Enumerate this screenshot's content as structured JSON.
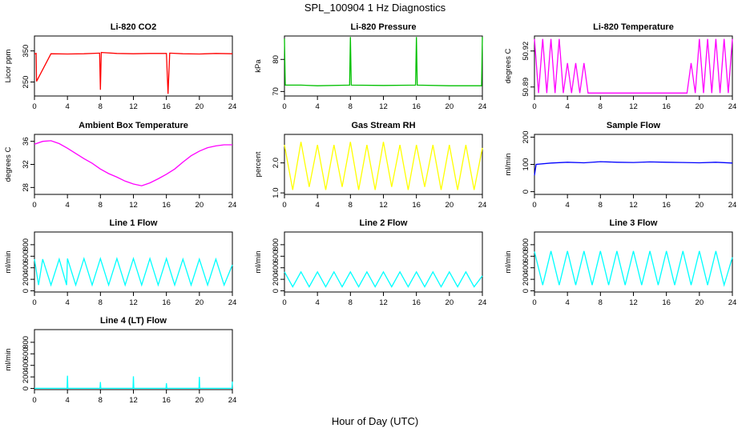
{
  "title": "SPL_100904  1 Hz Diagnostics",
  "xlabel": "Hour of Day (UTC)",
  "chart_data": [
    {
      "type": "line",
      "title": "Li-820 CO2",
      "ylabel": "Licor ppm",
      "color": "#ff0000",
      "xticks": [
        "0",
        "4",
        "8",
        "12",
        "16",
        "20",
        "24"
      ],
      "xlim": [
        0,
        24
      ],
      "yticks": [
        "250",
        "350"
      ],
      "yticks_values": [
        250,
        350
      ],
      "ylim": [
        205,
        398
      ],
      "series": [
        {
          "x": [
            0,
            0.2,
            0.25,
            2,
            4,
            6,
            7.9,
            8,
            8.1,
            10,
            12,
            14,
            16,
            16.2,
            16.4,
            18,
            20,
            22,
            24
          ],
          "y": [
            340,
            342,
            252,
            341,
            340,
            341,
            343,
            225,
            345,
            342,
            341,
            342,
            342,
            212,
            343,
            341,
            340,
            342,
            341
          ]
        }
      ]
    },
    {
      "type": "line",
      "title": "Li-820 Pressure",
      "ylabel": "kPa",
      "color": "#00c000",
      "xticks": [
        "0",
        "4",
        "8",
        "12",
        "16",
        "20",
        "24"
      ],
      "xlim": [
        0,
        24
      ],
      "yticks": [
        "70",
        "80"
      ],
      "yticks_values": [
        70,
        80
      ],
      "ylim": [
        68.6,
        87.3
      ],
      "series": [
        {
          "x": [
            0,
            0.1,
            0.15,
            2,
            4,
            7.9,
            8,
            8.1,
            12,
            15.9,
            16,
            16.1,
            20,
            23.9,
            24
          ],
          "y": [
            86.5,
            72,
            72,
            72,
            71.8,
            72,
            87,
            72,
            71.9,
            72,
            87,
            72,
            71.8,
            71.8,
            87
          ]
        }
      ]
    },
    {
      "type": "line",
      "title": "Li-820 Temperature",
      "ylabel": "degrees C",
      "color": "#ff00ff",
      "xticks": [
        "0",
        "4",
        "8",
        "12",
        "16",
        "20",
        "24"
      ],
      "xlim": [
        0,
        24
      ],
      "yticks": [
        "50.89",
        "50.92"
      ],
      "yticks_values": [
        50.89,
        50.92
      ],
      "ylim": [
        50.8825,
        50.9325
      ],
      "series": [
        {
          "x": [
            0,
            0.5,
            1,
            1.5,
            2,
            2.5,
            3,
            3.5,
            4,
            4.5,
            5,
            5.5,
            6,
            6.5,
            7,
            7.5,
            8,
            8.5,
            9,
            9.5,
            10,
            10.5,
            11,
            11.5,
            12,
            12.5,
            13,
            13.5,
            14,
            14.5,
            15,
            15.5,
            16,
            16.5,
            17,
            17.5,
            18,
            18.5,
            19,
            19.5,
            20,
            20.5,
            21,
            21.5,
            22,
            22.5,
            23,
            23.5,
            24
          ],
          "y": [
            50.93,
            50.885,
            50.93,
            50.885,
            50.93,
            50.885,
            50.93,
            50.885,
            50.91,
            50.885,
            50.91,
            50.885,
            50.91,
            50.885,
            50.885,
            50.885,
            50.885,
            50.885,
            50.885,
            50.885,
            50.885,
            50.885,
            50.885,
            50.885,
            50.885,
            50.885,
            50.885,
            50.885,
            50.885,
            50.885,
            50.885,
            50.885,
            50.885,
            50.885,
            50.885,
            50.885,
            50.885,
            50.885,
            50.91,
            50.885,
            50.93,
            50.885,
            50.93,
            50.885,
            50.93,
            50.885,
            50.93,
            50.885,
            50.93
          ]
        }
      ]
    },
    {
      "type": "line",
      "title": "Ambient Box Temperature",
      "ylabel": "degrees C",
      "color": "#ff00ff",
      "xticks": [
        "0",
        "4",
        "8",
        "12",
        "16",
        "20",
        "24"
      ],
      "xlim": [
        0,
        24
      ],
      "yticks": [
        "28",
        "32",
        "36"
      ],
      "yticks_values": [
        28,
        32,
        36
      ],
      "ylim": [
        26.8,
        37.2
      ],
      "series": [
        {
          "x": [
            0,
            1,
            2,
            3,
            4,
            5,
            6,
            7,
            8,
            9,
            10,
            11,
            12,
            13,
            14,
            15,
            16,
            17,
            18,
            19,
            20,
            21,
            22,
            23,
            24
          ],
          "y": [
            35.5,
            36,
            36.1,
            35.6,
            34.8,
            33.9,
            33,
            32.2,
            31.2,
            30.4,
            29.8,
            29.1,
            28.6,
            28.3,
            28.8,
            29.5,
            30.3,
            31.2,
            32.4,
            33.5,
            34.3,
            34.9,
            35.2,
            35.4,
            35.4
          ]
        }
      ]
    },
    {
      "type": "line",
      "title": "Gas Stream RH",
      "ylabel": "percent",
      "color": "#ffff00",
      "xticks": [
        "0",
        "4",
        "8",
        "12",
        "16",
        "20",
        "24"
      ],
      "xlim": [
        0,
        24
      ],
      "yticks": [
        "1.0",
        "2.0"
      ],
      "yticks_values": [
        1.0,
        2.0
      ],
      "ylim": [
        0.95,
        2.95
      ],
      "series": [
        {
          "x": [
            0,
            1,
            2,
            3,
            4,
            5,
            6,
            7,
            8,
            9,
            10,
            11,
            12,
            13,
            14,
            15,
            16,
            17,
            18,
            19,
            20,
            21,
            22,
            23,
            24
          ],
          "y": [
            2.6,
            1.1,
            2.7,
            1.2,
            2.6,
            1.1,
            2.6,
            1.2,
            2.7,
            1.1,
            2.6,
            1.1,
            2.7,
            1.2,
            2.6,
            1.1,
            2.6,
            1.2,
            2.6,
            1.1,
            2.6,
            1.1,
            2.6,
            1.1,
            2.5
          ]
        }
      ]
    },
    {
      "type": "line",
      "title": "Sample Flow",
      "ylabel": "ml/min",
      "color": "#0000ff",
      "xticks": [
        "0",
        "4",
        "8",
        "12",
        "16",
        "20",
        "24"
      ],
      "xlim": [
        0,
        24
      ],
      "yticks": [
        "0",
        "100",
        "200"
      ],
      "yticks_values": [
        0,
        100,
        200
      ],
      "ylim": [
        -10,
        210
      ],
      "series": [
        {
          "x": [
            0,
            0.2,
            2,
            4,
            6,
            8,
            10,
            12,
            14,
            16,
            18,
            20,
            22,
            24
          ],
          "y": [
            60,
            100,
            105,
            108,
            106,
            110,
            108,
            107,
            109,
            108,
            107,
            106,
            108,
            105
          ]
        }
      ]
    },
    {
      "type": "line",
      "title": "Line 1 Flow",
      "ylabel": "ml/min",
      "color": "#00ffff",
      "xticks": [
        "0",
        "4",
        "8",
        "12",
        "16",
        "20",
        "24"
      ],
      "xlim": [
        0,
        24
      ],
      "yticks": [
        "0",
        "200",
        "400",
        "600",
        "800"
      ],
      "yticks_values": [
        0,
        200,
        400,
        600,
        800
      ],
      "ylim": [
        -20,
        1020
      ],
      "series": [
        {
          "x": [
            0,
            0.5,
            1,
            2,
            3,
            3.9,
            4,
            5,
            6,
            7,
            8,
            9,
            10,
            11,
            12,
            13,
            14,
            15,
            16,
            17,
            18,
            19,
            20,
            21,
            22,
            23,
            24
          ],
          "y": [
            550,
            100,
            550,
            100,
            550,
            100,
            560,
            100,
            560,
            100,
            560,
            100,
            560,
            100,
            560,
            100,
            560,
            100,
            560,
            100,
            550,
            100,
            550,
            100,
            550,
            100,
            450
          ]
        }
      ]
    },
    {
      "type": "line",
      "title": "Line 2 Flow",
      "ylabel": "ml/min",
      "color": "#00ffff",
      "xticks": [
        "0",
        "4",
        "8",
        "12",
        "16",
        "20",
        "24"
      ],
      "xlim": [
        0,
        24
      ],
      "yticks": [
        "0",
        "200",
        "400",
        "600",
        "800"
      ],
      "yticks_values": [
        0,
        200,
        400,
        600,
        800
      ],
      "ylim": [
        -20,
        1020
      ],
      "series": [
        {
          "x": [
            0,
            1,
            2,
            3,
            4,
            5,
            6,
            7,
            8,
            9,
            10,
            11,
            12,
            13,
            14,
            15,
            16,
            17,
            18,
            19,
            20,
            21,
            22,
            23,
            24
          ],
          "y": [
            330,
            70,
            330,
            70,
            330,
            70,
            330,
            70,
            330,
            70,
            330,
            70,
            330,
            70,
            330,
            70,
            330,
            70,
            330,
            70,
            330,
            70,
            330,
            70,
            260
          ]
        }
      ]
    },
    {
      "type": "line",
      "title": "Line 3 Flow",
      "ylabel": "ml/min",
      "color": "#00ffff",
      "xticks": [
        "0",
        "4",
        "8",
        "12",
        "16",
        "20",
        "24"
      ],
      "xlim": [
        0,
        24
      ],
      "yticks": [
        "0",
        "200",
        "400",
        "600",
        "800"
      ],
      "yticks_values": [
        0,
        200,
        400,
        600,
        800
      ],
      "ylim": [
        -20,
        1020
      ],
      "series": [
        {
          "x": [
            0,
            1,
            2,
            3,
            4,
            5,
            6,
            7,
            8,
            9,
            10,
            11,
            12,
            13,
            14,
            15,
            16,
            17,
            18,
            19,
            20,
            21,
            22,
            23,
            24
          ],
          "y": [
            680,
            100,
            690,
            100,
            690,
            100,
            690,
            100,
            690,
            100,
            690,
            100,
            690,
            100,
            690,
            100,
            690,
            100,
            690,
            100,
            690,
            100,
            690,
            100,
            580
          ]
        }
      ]
    },
    {
      "type": "line",
      "title": "Line 4 (LT) Flow",
      "ylabel": "ml/min",
      "color": "#00ffff",
      "xticks": [
        "0",
        "4",
        "8",
        "12",
        "16",
        "20",
        "24"
      ],
      "xlim": [
        0,
        24
      ],
      "yticks": [
        "0",
        "200",
        "400",
        "600",
        "800"
      ],
      "yticks_values": [
        0,
        200,
        400,
        600,
        800
      ],
      "ylim": [
        -20,
        1020
      ],
      "series": [
        {
          "x": [
            0,
            3.95,
            4,
            4.05,
            7.95,
            8,
            8.05,
            11.95,
            12,
            12.05,
            15.95,
            16,
            16.05,
            19.95,
            20,
            20.05,
            23.95,
            24
          ],
          "y": [
            2,
            2,
            220,
            2,
            2,
            110,
            2,
            2,
            210,
            2,
            2,
            90,
            2,
            2,
            200,
            2,
            2,
            120
          ]
        }
      ]
    }
  ]
}
